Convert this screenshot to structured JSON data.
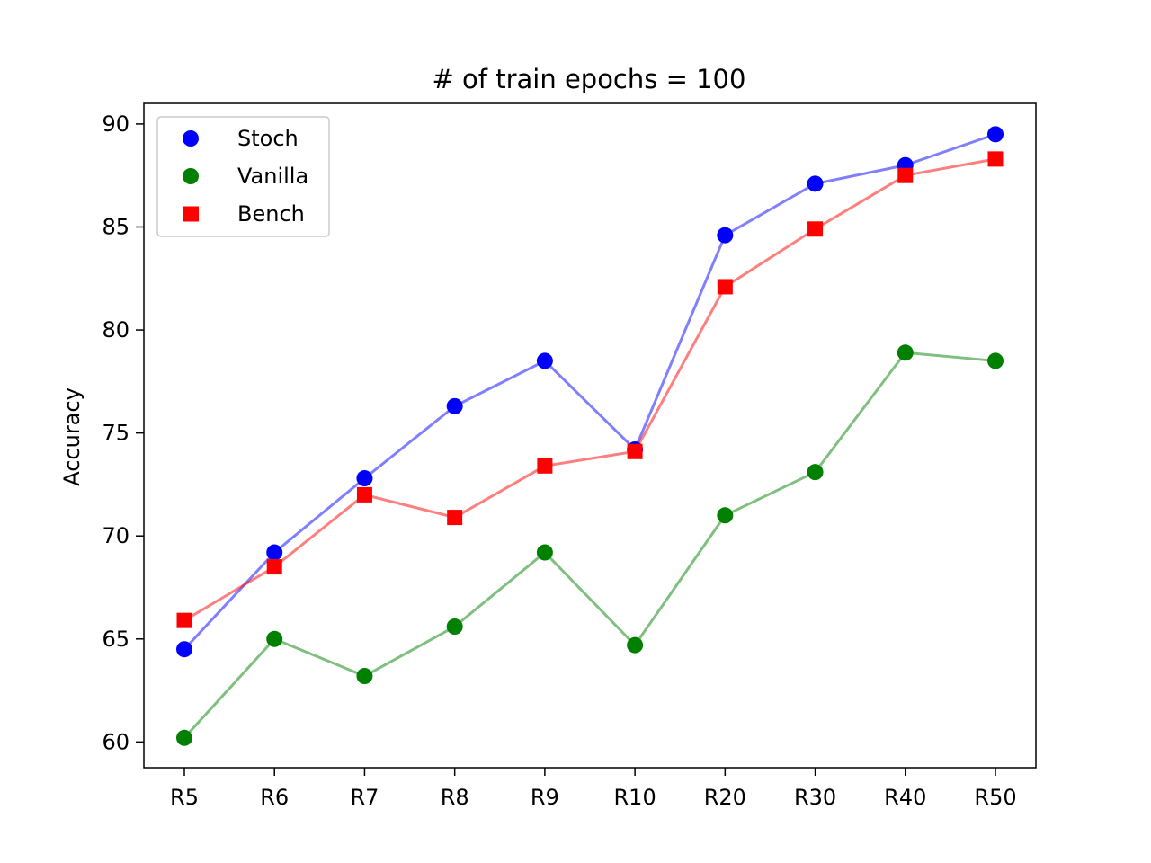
{
  "chart_data": {
    "type": "line",
    "title": "# of train epochs = 100",
    "xlabel": "",
    "ylabel": "Accuracy",
    "categories": [
      "R5",
      "R6",
      "R7",
      "R8",
      "R9",
      "R10",
      "R20",
      "R30",
      "R40",
      "R50"
    ],
    "ylim": [
      58.75,
      91.0
    ],
    "yticks": [
      60,
      65,
      70,
      75,
      80,
      85,
      90
    ],
    "grid": false,
    "legend_position": "top-left",
    "series": [
      {
        "name": "Stoch",
        "marker": "circle",
        "color": "#0000ff",
        "values": [
          64.5,
          69.2,
          72.8,
          76.3,
          78.5,
          74.2,
          84.6,
          87.1,
          88.0,
          89.5
        ]
      },
      {
        "name": "Vanilla",
        "marker": "circle",
        "color": "#008000",
        "values": [
          60.2,
          65.0,
          63.2,
          65.6,
          69.2,
          64.7,
          71.0,
          73.1,
          78.9,
          78.5
        ]
      },
      {
        "name": "Bench",
        "marker": "square",
        "color": "#ff0000",
        "values": [
          65.9,
          68.5,
          72.0,
          70.9,
          73.4,
          74.1,
          82.1,
          84.9,
          87.5,
          88.3
        ]
      }
    ]
  }
}
